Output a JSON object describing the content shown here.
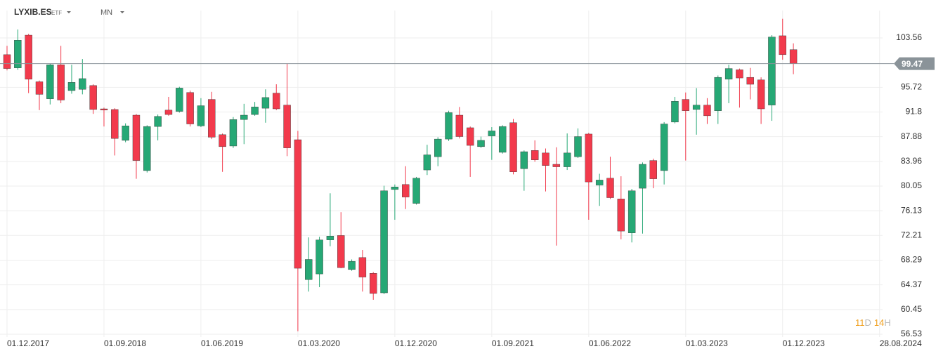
{
  "header": {
    "symbol": "LYXIB.ES",
    "kind": "ETF",
    "interval": "MN"
  },
  "chart_data": {
    "type": "candlestick",
    "categories": [
      "01.12.2017",
      null,
      null,
      null,
      null,
      null,
      null,
      null,
      null,
      "01.09.2018",
      null,
      null,
      null,
      null,
      null,
      null,
      null,
      null,
      "01.06.2019",
      null,
      null,
      null,
      null,
      null,
      null,
      null,
      null,
      "01.03.2020",
      null,
      null,
      null,
      null,
      null,
      null,
      null,
      null,
      "01.12.2020",
      null,
      null,
      null,
      null,
      null,
      null,
      null,
      null,
      "01.09.2021",
      null,
      null,
      null,
      null,
      null,
      null,
      null,
      null,
      "01.06.2022",
      null,
      null,
      null,
      null,
      null,
      null,
      null,
      null,
      "01.03.2023",
      null,
      null,
      null,
      null,
      null,
      null,
      null,
      null,
      "01.12.2023",
      null,
      null,
      null,
      null,
      null,
      null,
      null,
      null,
      "28.08.2024"
    ],
    "open": [
      100.9,
      98.8,
      104.0,
      96.6,
      93.9,
      99.3,
      95.2,
      95.4,
      96.0,
      92.3,
      92.2,
      87.3,
      91.3,
      82.5,
      89.5,
      92.1,
      91.9,
      94.9,
      89.6,
      93.8,
      88.2,
      86.4,
      90.6,
      91.4,
      92.4,
      94.8,
      92.9,
      87.4,
      65.2,
      66.1,
      71.5,
      72.2,
      66.8,
      68.7,
      66.2,
      63.1,
      79.5,
      80.3,
      77.3,
      82.6,
      84.7,
      87.5,
      91.3,
      89.3,
      86.3,
      88.0,
      85.4,
      90.1,
      82.8,
      85.7,
      85.3,
      83.5,
      83.1,
      84.7,
      88.3,
      80.2,
      81.3,
      78.0,
      72.6,
      79.7,
      84.1,
      82.5,
      90.2,
      93.8,
      92.2,
      92.9,
      92.0,
      97.0,
      98.5,
      97.3,
      96.9,
      92.9,
      103.9,
      101.7,
      null,
      null,
      null,
      null,
      null,
      null,
      null,
      null
    ],
    "high": [
      102.3,
      104.9,
      104.2,
      96.8,
      99.5,
      102.3,
      99.3,
      100.2,
      96.2,
      92.5,
      92.4,
      90.0,
      91.5,
      89.7,
      91.4,
      94.2,
      95.8,
      95.2,
      94.0,
      95.0,
      88.4,
      91.0,
      93.1,
      93.4,
      95.4,
      96.2,
      99.5,
      88.8,
      71.9,
      72.0,
      78.9,
      75.9,
      68.4,
      69.9,
      66.4,
      80.1,
      80.3,
      83.2,
      81.5,
      86.6,
      87.8,
      92.0,
      92.6,
      89.5,
      87.9,
      89.4,
      89.7,
      90.7,
      85.7,
      87.3,
      86.0,
      86.2,
      88.4,
      89.2,
      88.5,
      82.0,
      84.7,
      81.6,
      79.6,
      83.8,
      84.4,
      90.2,
      94.2,
      94.9,
      95.6,
      94.0,
      97.6,
      99.3,
      98.7,
      98.8,
      97.3,
      104.0,
      106.6,
      102.7,
      null,
      null,
      null,
      null,
      null,
      null,
      null,
      null
    ],
    "low": [
      98.4,
      98.5,
      94.8,
      92.1,
      93.0,
      93.2,
      94.7,
      94.6,
      91.5,
      89.5,
      84.9,
      87.0,
      81.2,
      82.2,
      87.3,
      91.2,
      91.7,
      89.5,
      89.4,
      87.5,
      82.3,
      86.1,
      86.7,
      91.2,
      90.1,
      92.1,
      84.8,
      57.0,
      63.3,
      64.0,
      70.5,
      67.0,
      66.6,
      63.3,
      62.0,
      62.9,
      74.7,
      76.4,
      77.1,
      81.8,
      83.2,
      87.2,
      87.6,
      81.5,
      86.1,
      84.2,
      85.2,
      81.9,
      79.3,
      83.9,
      79.2,
      70.6,
      82.6,
      84.5,
      74.7,
      76.9,
      78.0,
      71.6,
      71.1,
      72.5,
      79.7,
      80.3,
      90.0,
      84.1,
      88.2,
      89.9,
      89.9,
      93.2,
      92.5,
      93.8,
      89.9,
      90.4,
      100.1,
      97.8,
      null,
      null,
      null,
      null,
      null,
      null,
      null,
      null
    ],
    "close": [
      98.7,
      103.2,
      97.0,
      94.6,
      99.3,
      93.7,
      96.5,
      97.1,
      92.2,
      92.1,
      87.6,
      89.6,
      84.1,
      89.5,
      91.1,
      91.4,
      95.6,
      89.9,
      92.8,
      87.8,
      86.3,
      90.6,
      91.3,
      92.6,
      94.1,
      92.3,
      86.1,
      67.0,
      68.4,
      71.5,
      72.1,
      67.1,
      68.1,
      65.6,
      63.0,
      79.3,
      79.9,
      78.3,
      81.3,
      85.0,
      87.5,
      91.7,
      87.9,
      86.5,
      87.3,
      88.8,
      89.5,
      82.3,
      85.5,
      84.2,
      83.3,
      83.1,
      85.3,
      87.9,
      80.7,
      81.0,
      78.2,
      72.9,
      79.3,
      83.5,
      81.2,
      89.9,
      93.5,
      92.0,
      92.9,
      91.2,
      97.3,
      98.7,
      97.2,
      96.2,
      92.3,
      103.7,
      100.9,
      99.47,
      null,
      null,
      null,
      null,
      null,
      null,
      null,
      null
    ],
    "up_color": "#26a875",
    "down_color": "#f23a4c",
    "current_price": 99.47,
    "ylim": [
      56.53,
      106.79
    ],
    "yticks": [
      56.53,
      60.45,
      64.37,
      68.29,
      72.21,
      76.13,
      80.05,
      83.96,
      87.88,
      91.8,
      95.72,
      103.56
    ],
    "grid": true,
    "countdown": [
      "11",
      "D",
      "14",
      "H"
    ]
  }
}
